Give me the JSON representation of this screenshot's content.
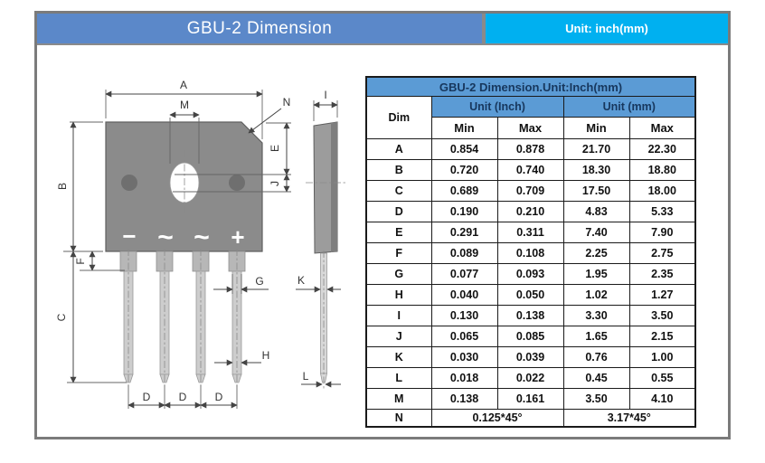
{
  "page": {
    "title": "GBU-2 Dimension",
    "unit_badge": "Unit: inch(mm)"
  },
  "colors": {
    "title_bar_blue": "#5b88c9",
    "unit_badge_cyan": "#00b0f0",
    "table_header_blue": "#5b9bd5",
    "table_header_text": "#17375d",
    "frame_border": "#7b7b7b",
    "body_gray": "#8b8b8b",
    "accent_line": "#444444"
  },
  "drawing": {
    "labels": {
      "a": "A",
      "b": "B",
      "c": "C",
      "d": "D",
      "e": "E",
      "f": "F",
      "g": "G",
      "h": "H",
      "i": "I",
      "j": "J",
      "k": "K",
      "l": "L",
      "m": "M",
      "n": "N"
    },
    "front_view_symbols": {
      "minus": "−",
      "ac_left": "~",
      "ac_right": "~",
      "plus": "+"
    }
  },
  "table": {
    "title": "GBU-2 Dimension.Unit:Inch(mm)",
    "headers": {
      "dim": "Dim",
      "unit_inch": "Unit (Inch)",
      "unit_mm": "Unit (mm)",
      "min": "Min",
      "max": "Max"
    },
    "rows": [
      {
        "dim": "A",
        "inch_min": "0.854",
        "inch_max": "0.878",
        "mm_min": "21.70",
        "mm_max": "22.30"
      },
      {
        "dim": "B",
        "inch_min": "0.720",
        "inch_max": "0.740",
        "mm_min": "18.30",
        "mm_max": "18.80"
      },
      {
        "dim": "C",
        "inch_min": "0.689",
        "inch_max": "0.709",
        "mm_min": "17.50",
        "mm_max": "18.00"
      },
      {
        "dim": "D",
        "inch_min": "0.190",
        "inch_max": "0.210",
        "mm_min": "4.83",
        "mm_max": "5.33"
      },
      {
        "dim": "E",
        "inch_min": "0.291",
        "inch_max": "0.311",
        "mm_min": "7.40",
        "mm_max": "7.90"
      },
      {
        "dim": "F",
        "inch_min": "0.089",
        "inch_max": "0.108",
        "mm_min": "2.25",
        "mm_max": "2.75"
      },
      {
        "dim": "G",
        "inch_min": "0.077",
        "inch_max": "0.093",
        "mm_min": "1.95",
        "mm_max": "2.35"
      },
      {
        "dim": "H",
        "inch_min": "0.040",
        "inch_max": "0.050",
        "mm_min": "1.02",
        "mm_max": "1.27"
      },
      {
        "dim": "I",
        "inch_min": "0.130",
        "inch_max": "0.138",
        "mm_min": "3.30",
        "mm_max": "3.50"
      },
      {
        "dim": "J",
        "inch_min": "0.065",
        "inch_max": "0.085",
        "mm_min": "1.65",
        "mm_max": "2.15"
      },
      {
        "dim": "K",
        "inch_min": "0.030",
        "inch_max": "0.039",
        "mm_min": "0.76",
        "mm_max": "1.00"
      },
      {
        "dim": "L",
        "inch_min": "0.018",
        "inch_max": "0.022",
        "mm_min": "0.45",
        "mm_max": "0.55"
      },
      {
        "dim": "M",
        "inch_min": "0.138",
        "inch_max": "0.161",
        "mm_min": "3.50",
        "mm_max": "4.10"
      }
    ],
    "n_row": {
      "dim": "N",
      "inch": "0.125*45°",
      "mm": "3.17*45°"
    }
  }
}
